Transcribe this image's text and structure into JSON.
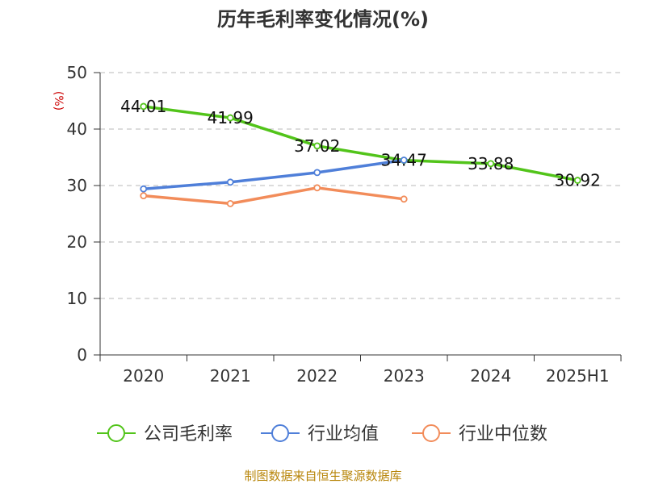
{
  "chart_data": {
    "type": "line",
    "title": "历年毛利率变化情况(%)",
    "ylabel": "(%)",
    "categories": [
      "2020",
      "2021",
      "2022",
      "2023",
      "2024",
      "2025H1"
    ],
    "ylim": [
      0,
      50
    ],
    "yticks": [
      "0",
      "10",
      "20",
      "30",
      "40",
      "50"
    ],
    "grid": true,
    "legend_position": "bottom",
    "series": [
      {
        "name": "公司毛利率",
        "color": "#52c41a",
        "values": [
          44.01,
          41.99,
          37.02,
          34.47,
          33.88,
          30.92
        ],
        "labels": [
          "44.01",
          "41.99",
          "37.02",
          "34.47",
          "33.88",
          "30.92"
        ]
      },
      {
        "name": "行业均值",
        "color": "#4f7fd9",
        "values": [
          29.4,
          30.6,
          32.3,
          34.5,
          null,
          null
        ]
      },
      {
        "name": "行业中位数",
        "color": "#f28c5a",
        "values": [
          28.2,
          26.8,
          29.6,
          27.6,
          null,
          null
        ]
      }
    ],
    "source": "制图数据来自恒生聚源数据库"
  }
}
